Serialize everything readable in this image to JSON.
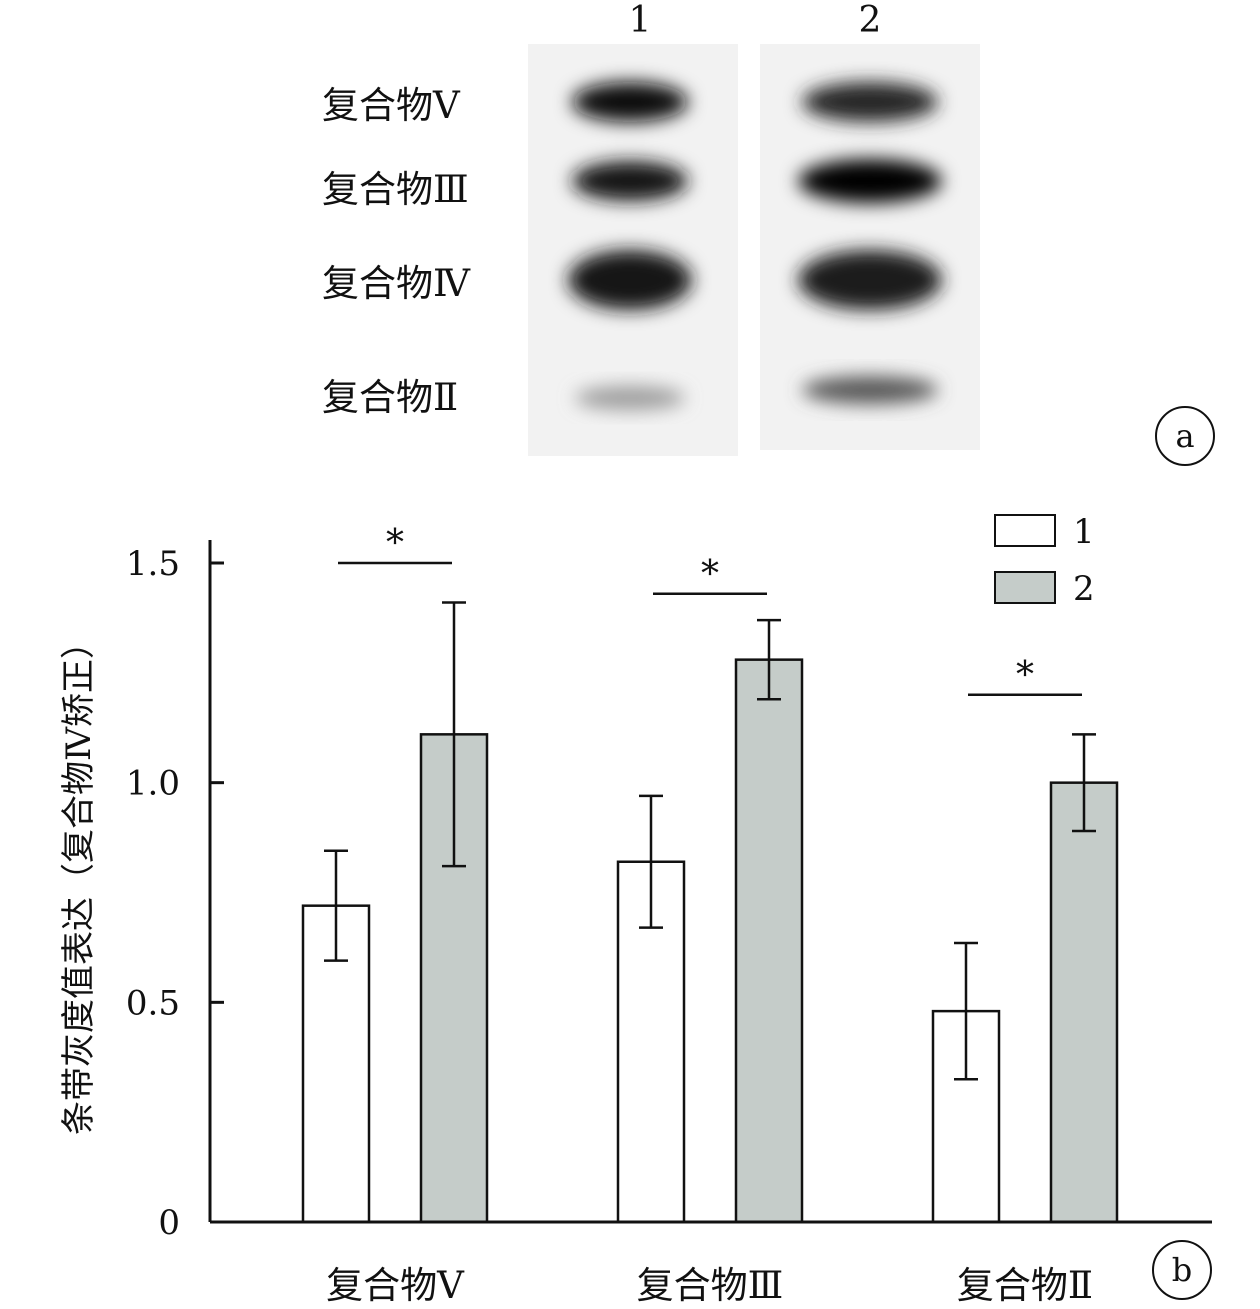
{
  "panel_a": {
    "letter": "a",
    "lanes": [
      "1",
      "2"
    ],
    "bands": [
      {
        "label": "复合物Ⅴ",
        "intensity": [
          0.95,
          0.85
        ]
      },
      {
        "label": "复合物Ⅲ",
        "intensity": [
          0.92,
          1.0
        ]
      },
      {
        "label": "复合物Ⅳ",
        "intensity": [
          0.9,
          0.88
        ]
      },
      {
        "label": "复合物Ⅱ",
        "intensity": [
          0.38,
          0.65
        ]
      }
    ]
  },
  "panel_b": {
    "letter": "b"
  },
  "chart_data": {
    "type": "bar",
    "ylabel": "条带灰度值表达（复合物Ⅳ矫正）",
    "xlabel": "",
    "categories": [
      "复合物Ⅴ",
      "复合物Ⅲ",
      "复合物Ⅱ"
    ],
    "series": [
      {
        "name": "1",
        "color": "#ffffff",
        "values": [
          0.72,
          0.82,
          0.48
        ],
        "errors": [
          0.125,
          0.15,
          0.155
        ]
      },
      {
        "name": "2",
        "color": "#c5ccc9",
        "values": [
          1.11,
          1.28,
          1.0
        ],
        "errors": [
          0.3,
          0.09,
          0.11
        ]
      }
    ],
    "yticks": [
      "0",
      "0.5",
      "1.0",
      "1.5"
    ],
    "ytick_values": [
      0,
      0.5,
      1.0,
      1.5
    ],
    "ylim": [
      0,
      1.5
    ],
    "significance": [
      {
        "category": 0,
        "label": "*",
        "level": 1.5
      },
      {
        "category": 1,
        "label": "*",
        "level": 1.43
      },
      {
        "category": 2,
        "label": "*",
        "level": 1.2
      }
    ],
    "legend_position": "top-right",
    "grid": false
  }
}
